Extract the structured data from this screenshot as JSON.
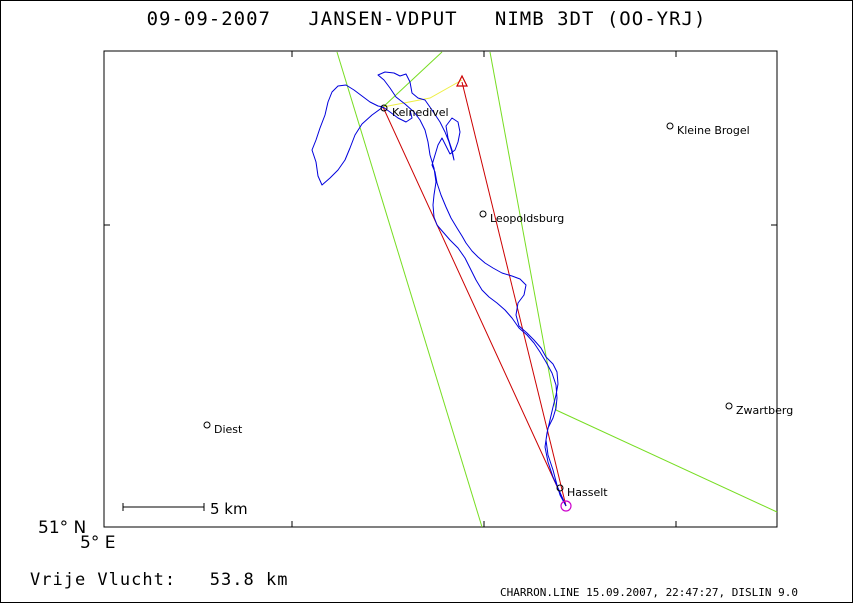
{
  "title": {
    "date": "09-09-2007",
    "pilots": "JANSEN-VDPUT",
    "glider": "NIMB 3DT (OO-YRJ)"
  },
  "map": {
    "lat_label": "51° N",
    "lon_label": "5° E",
    "scale_label": "5 km",
    "colors": {
      "track": "#0000dd",
      "task": "#cc0000",
      "sector": "#77dd22",
      "start_leg": "#eeee44",
      "start_marker": "#cc0000",
      "finish_marker": "#cc00cc"
    },
    "places": [
      {
        "name": "Kleine Brogel"
      },
      {
        "name": "Leopoldsburg"
      },
      {
        "name": "Kelnedivel"
      },
      {
        "name": "Zwartberg"
      },
      {
        "name": "Diest"
      },
      {
        "name": "Hasselt"
      }
    ]
  },
  "footer": {
    "distance_label": "Vrije Vlucht:",
    "distance_value": "53.8 km",
    "credit": "CHARRON.LINE 15.09.2007, 22:47:27, DISLIN 9.0"
  }
}
